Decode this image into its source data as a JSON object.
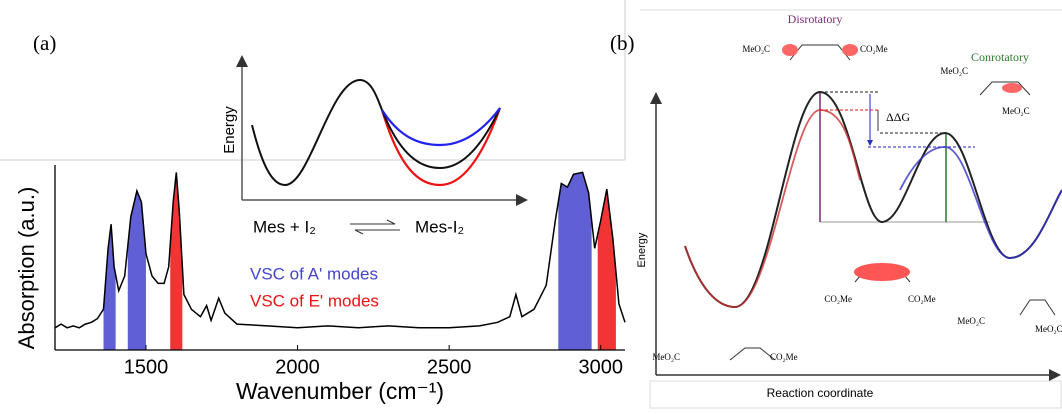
{
  "chart_data": {
    "type": "line",
    "panel_label": "(a)",
    "x_label": "Wavenumber (cm⁻¹)",
    "y_label": "Absorption (a.u.)",
    "x": [
      1200,
      1220,
      1240,
      1260,
      1280,
      1300,
      1320,
      1340,
      1360,
      1375,
      1385,
      1395,
      1410,
      1430,
      1450,
      1470,
      1485,
      1500,
      1520,
      1540,
      1560,
      1575,
      1590,
      1600,
      1610,
      1625,
      1650,
      1680,
      1700,
      1715,
      1740,
      1760,
      1800,
      1900,
      2000,
      2100,
      2200,
      2300,
      2400,
      2500,
      2600,
      2660,
      2700,
      2720,
      2740,
      2780,
      2820,
      2850,
      2870,
      2890,
      2910,
      2940,
      2960,
      2980,
      3000,
      3020,
      3040,
      3060,
      3080
    ],
    "values": [
      0.12,
      0.14,
      0.12,
      0.13,
      0.12,
      0.14,
      0.15,
      0.17,
      0.22,
      0.55,
      0.68,
      0.45,
      0.32,
      0.4,
      0.72,
      0.86,
      0.8,
      0.52,
      0.4,
      0.36,
      0.36,
      0.45,
      0.8,
      0.96,
      0.75,
      0.3,
      0.22,
      0.18,
      0.24,
      0.16,
      0.28,
      0.2,
      0.14,
      0.13,
      0.12,
      0.13,
      0.12,
      0.13,
      0.12,
      0.12,
      0.13,
      0.15,
      0.18,
      0.3,
      0.18,
      0.22,
      0.35,
      0.7,
      0.9,
      0.88,
      0.95,
      0.96,
      0.85,
      0.55,
      0.7,
      0.87,
      0.6,
      0.25,
      0.15
    ],
    "color": "#000000",
    "xlim": [
      1200,
      3080
    ],
    "xticks": [
      1500,
      2000,
      2500,
      3000
    ],
    "ylim": [
      0,
      1
    ],
    "bands": [
      {
        "name": "VSC of A' modes",
        "color": "#4444cc",
        "ranges": [
          [
            1360,
            1400
          ],
          [
            1440,
            1500
          ],
          [
            2860,
            2970
          ]
        ]
      },
      {
        "name": "VSC of E' modes",
        "color": "#ee1111",
        "ranges": [
          [
            1580,
            1620
          ],
          [
            2990,
            3050
          ]
        ]
      }
    ],
    "inset": {
      "y_label": "Energy",
      "reactant": "Mes + I₂",
      "product": "Mes-I₂"
    }
  },
  "panel_b": {
    "panel_label": "(b)",
    "y_label": "Energy",
    "x_label": "Reaction coordinate",
    "disrotatory": "Disrotatory",
    "conrotatory": "Conrotatory",
    "delta": "ΔΔG",
    "molecules": [
      {
        "left": "MeO₂C",
        "right": "CO₂Me"
      },
      {
        "left": "MeO₂C",
        "right": "MeO₂C"
      },
      {
        "left": "CO₂Me",
        "right": "CO₂Me"
      },
      {
        "left": "MeO₂C",
        "right": "MeO₂C"
      },
      {
        "left": "MeO₂C",
        "right": "CO₂Me"
      }
    ]
  }
}
